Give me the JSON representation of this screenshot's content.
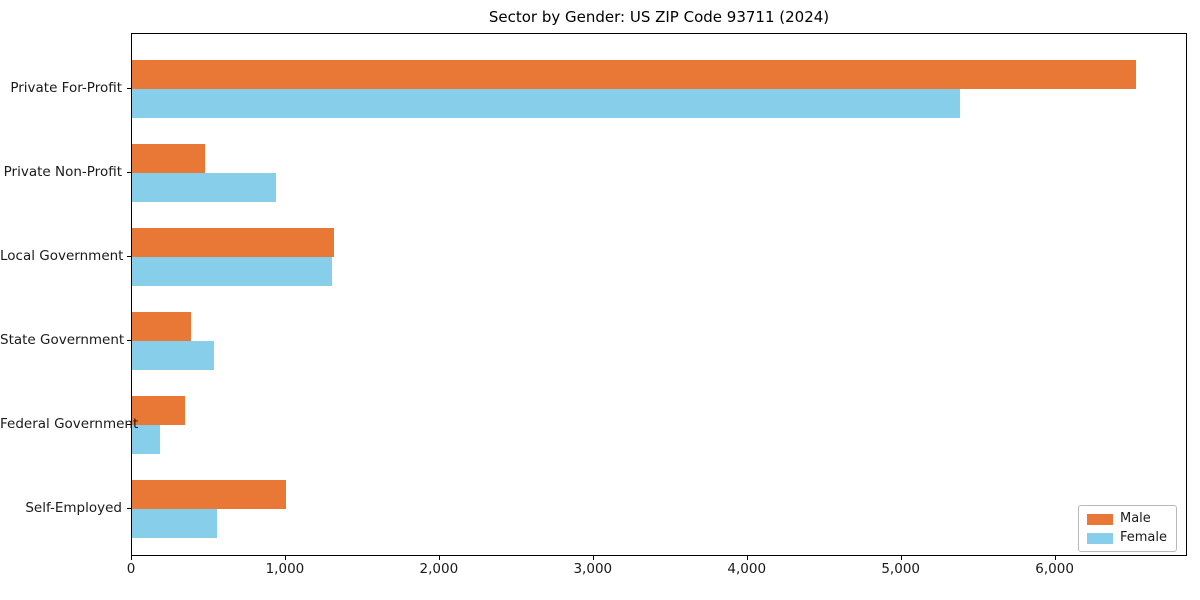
{
  "chart_data": {
    "type": "bar",
    "orientation": "horizontal",
    "title": "Sector by Gender: US ZIP Code 93711 (2024)",
    "xlabel": "",
    "ylabel": "",
    "categories": [
      "Private For-Profit",
      "Private Non-Profit",
      "Local Government",
      "State Government",
      "Federal Government",
      "Self-Employed"
    ],
    "series": [
      {
        "name": "Male",
        "color": "#e97836",
        "values": [
          6520,
          476,
          1314,
          383,
          346,
          1002
        ]
      },
      {
        "name": "Female",
        "color": "#87ceeb",
        "values": [
          5377,
          935,
          1299,
          530,
          184,
          550
        ]
      }
    ],
    "xlim": [
      0,
      6860
    ],
    "x_tick_values": [
      0,
      1000,
      2000,
      3000,
      4000,
      5000,
      6000
    ],
    "x_tick_labels": [
      "0",
      "1,000",
      "2,000",
      "3,000",
      "4,000",
      "5,000",
      "6,000"
    ],
    "grid": false,
    "legend": {
      "position": "lower right"
    }
  }
}
